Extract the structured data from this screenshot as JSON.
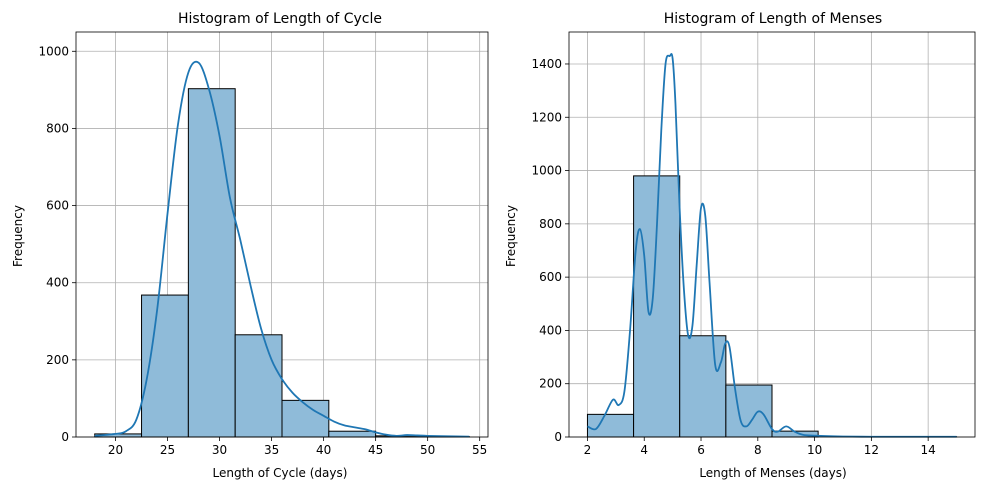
{
  "chart_data": [
    {
      "type": "histogram",
      "title": "Histogram of Length of Cycle",
      "xlabel": "Length of Cycle (days)",
      "ylabel": "Frequency",
      "xlim": [
        16.2,
        55.8
      ],
      "ylim": [
        0,
        1050
      ],
      "xticks": [
        20,
        25,
        30,
        35,
        40,
        45,
        50,
        55
      ],
      "yticks": [
        0,
        200,
        400,
        600,
        800,
        1000
      ],
      "grid": true,
      "bar_color": "#8fbbd9",
      "edge_color": "#000000",
      "kde_color": "#1f77b4",
      "bins": [
        {
          "x0": 18.0,
          "x1": 22.5,
          "count": 8
        },
        {
          "x0": 22.5,
          "x1": 27.0,
          "count": 368
        },
        {
          "x0": 27.0,
          "x1": 31.5,
          "count": 903
        },
        {
          "x0": 31.5,
          "x1": 36.0,
          "count": 265
        },
        {
          "x0": 36.0,
          "x1": 40.5,
          "count": 95
        },
        {
          "x0": 40.5,
          "x1": 45.0,
          "count": 15
        },
        {
          "x0": 45.0,
          "x1": 49.5,
          "count": 3
        },
        {
          "x0": 49.5,
          "x1": 54.0,
          "count": 1
        }
      ],
      "kde": {
        "x": [
          18,
          20,
          21,
          22,
          23,
          24,
          25,
          26,
          27,
          28,
          29,
          30,
          31,
          32,
          33,
          34,
          35,
          36,
          37,
          38,
          39,
          40,
          41,
          42,
          43,
          44,
          45,
          46,
          47,
          48,
          49,
          50,
          52,
          54
        ],
        "y": [
          3,
          8,
          15,
          45,
          150,
          330,
          580,
          810,
          945,
          970,
          900,
          780,
          620,
          510,
          390,
          280,
          200,
          150,
          115,
          90,
          70,
          55,
          40,
          30,
          25,
          20,
          12,
          6,
          3,
          5,
          4,
          3,
          2,
          1
        ]
      }
    },
    {
      "type": "histogram",
      "title": "Histogram of Length of Menses",
      "xlabel": "Length of Menses (days)",
      "ylabel": "Frequency",
      "xlim": [
        1.35,
        15.65
      ],
      "ylim": [
        0,
        1520
      ],
      "xticks": [
        2,
        4,
        6,
        8,
        10,
        12,
        14
      ],
      "yticks": [
        0,
        200,
        400,
        600,
        800,
        1000,
        1200,
        1400
      ],
      "grid": true,
      "bar_color": "#8fbbd9",
      "edge_color": "#000000",
      "kde_color": "#1f77b4",
      "bins": [
        {
          "x0": 2.0,
          "x1": 3.625,
          "count": 85
        },
        {
          "x0": 3.625,
          "x1": 5.25,
          "count": 980
        },
        {
          "x0": 5.25,
          "x1": 6.875,
          "count": 380
        },
        {
          "x0": 6.875,
          "x1": 8.5,
          "count": 195
        },
        {
          "x0": 8.5,
          "x1": 10.125,
          "count": 22
        },
        {
          "x0": 10.125,
          "x1": 11.75,
          "count": 0
        },
        {
          "x0": 11.75,
          "x1": 13.375,
          "count": 0
        },
        {
          "x0": 13.375,
          "x1": 15.0,
          "count": 1
        }
      ],
      "kde": {
        "x": [
          2.0,
          2.3,
          2.6,
          2.9,
          3.1,
          3.3,
          3.5,
          3.7,
          3.85,
          4.0,
          4.15,
          4.3,
          4.45,
          4.6,
          4.75,
          4.9,
          5.0,
          5.1,
          5.25,
          5.4,
          5.55,
          5.7,
          5.85,
          6.0,
          6.15,
          6.3,
          6.5,
          6.7,
          6.85,
          7.0,
          7.2,
          7.4,
          7.6,
          7.8,
          8.0,
          8.2,
          8.5,
          8.7,
          9.0,
          9.3,
          9.6,
          10.0,
          10.5,
          11,
          12,
          13,
          14,
          15
        ],
        "y": [
          40,
          30,
          80,
          140,
          120,
          170,
          400,
          700,
          780,
          680,
          470,
          520,
          800,
          1150,
          1400,
          1430,
          1420,
          1250,
          850,
          550,
          380,
          420,
          650,
          860,
          830,
          580,
          270,
          280,
          350,
          340,
          180,
          60,
          40,
          65,
          95,
          85,
          30,
          20,
          40,
          20,
          8,
          5,
          3,
          2,
          1,
          1,
          1,
          1
        ]
      }
    }
  ]
}
